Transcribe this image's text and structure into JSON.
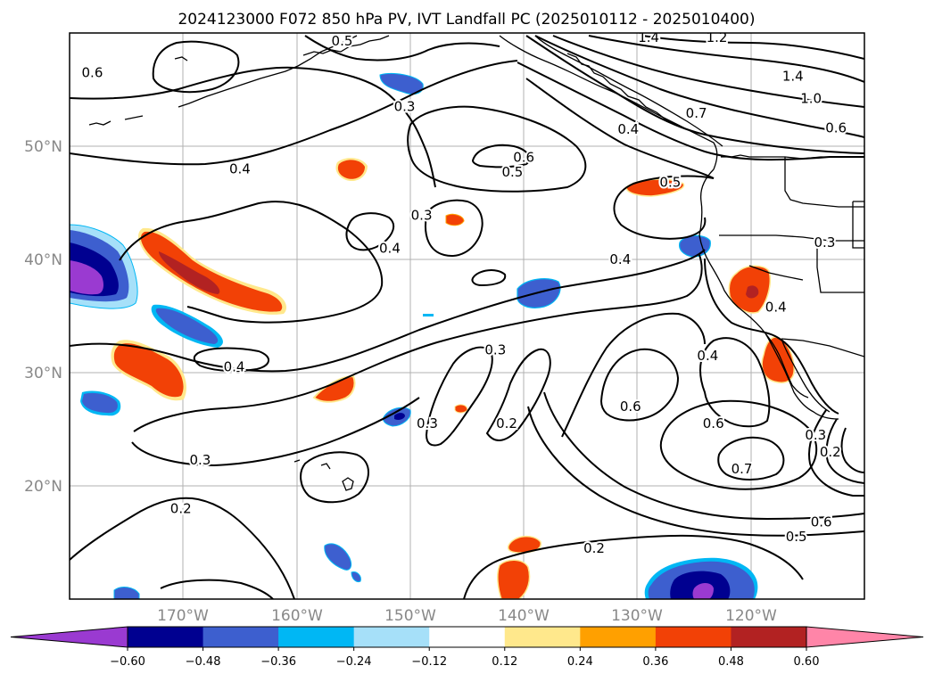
{
  "title": "2024123000 F072 850 hPa PV, IVT Landfall PC (2025010112 - 2025010400)",
  "chart_data": {
    "type": "contour-map",
    "title": "2024123000 F072 850 hPa PV, IVT Landfall PC (2025010112 - 2025010400)",
    "longitude_ticks": [
      "170°W",
      "160°W",
      "150°W",
      "140°W",
      "130°W",
      "120°W"
    ],
    "latitude_ticks": [
      "50°N",
      "40°N",
      "30°N",
      "20°N"
    ],
    "extent": {
      "lon": [
        -180,
        -110
      ],
      "lat": [
        10,
        60
      ]
    },
    "grid": true,
    "colorbar": {
      "levels": [
        -0.6,
        -0.48,
        -0.36,
        -0.24,
        -0.12,
        0.12,
        0.24,
        0.36,
        0.48,
        0.6
      ],
      "tick_labels": [
        "−0.60",
        "−0.48",
        "−0.36",
        "−0.24",
        "−0.12",
        "0.12",
        "0.24",
        "0.36",
        "0.48",
        "0.60"
      ],
      "colors": [
        "#9a3ad1",
        "#000090",
        "#3d5fcf",
        "#00b7f4",
        "#a6e0f9",
        "#ffffff",
        "#ffe88c",
        "#ffa000",
        "#f24106",
        "#b22222",
        "#ff85a8"
      ],
      "extend": "both"
    },
    "contour_labels": [
      {
        "text": "0.6",
        "lon": -178,
        "lat": 56.5
      },
      {
        "text": "0.5",
        "lon": -156,
        "lat": 59.3
      },
      {
        "text": "0.3",
        "lon": -150.5,
        "lat": 53.5
      },
      {
        "text": "0.4",
        "lon": -165,
        "lat": 48
      },
      {
        "text": "0.6",
        "lon": -140,
        "lat": 49
      },
      {
        "text": "0.5",
        "lon": -141,
        "lat": 47.7
      },
      {
        "text": "0.3",
        "lon": -149,
        "lat": 43.9
      },
      {
        "text": "0.4",
        "lon": -151.8,
        "lat": 41
      },
      {
        "text": "0.4",
        "lon": -131.5,
        "lat": 40
      },
      {
        "text": "0.3",
        "lon": -142.5,
        "lat": 32
      },
      {
        "text": "0.4",
        "lon": -165.5,
        "lat": 30.5
      },
      {
        "text": "0.3",
        "lon": -148.5,
        "lat": 25.5
      },
      {
        "text": "0.2",
        "lon": -141.5,
        "lat": 25.5
      },
      {
        "text": "0.3",
        "lon": -168.5,
        "lat": 22.3
      },
      {
        "text": "0.2",
        "lon": -170.2,
        "lat": 18
      },
      {
        "text": "0.2",
        "lon": -133.8,
        "lat": 14.5
      },
      {
        "text": "1.4",
        "lon": -129,
        "lat": 59.6
      },
      {
        "text": "1.2",
        "lon": -123,
        "lat": 59.6
      },
      {
        "text": "1.4",
        "lon": -116.3,
        "lat": 56.2
      },
      {
        "text": "1.0",
        "lon": -114.7,
        "lat": 54.2
      },
      {
        "text": "0.7",
        "lon": -124.8,
        "lat": 52.9
      },
      {
        "text": "0.6",
        "lon": -112.5,
        "lat": 51.6
      },
      {
        "text": "0.4",
        "lon": -130.8,
        "lat": 51.5
      },
      {
        "text": "0.5",
        "lon": -127.1,
        "lat": 46.8
      },
      {
        "text": "0.3",
        "lon": -113.5,
        "lat": 41.5
      },
      {
        "text": "0.4",
        "lon": -117.8,
        "lat": 35.8
      },
      {
        "text": "0.4",
        "lon": -123.8,
        "lat": 31.5
      },
      {
        "text": "0.6",
        "lon": -130.6,
        "lat": 27
      },
      {
        "text": "0.6",
        "lon": -123.3,
        "lat": 25.5
      },
      {
        "text": "0.7",
        "lon": -120.8,
        "lat": 21.5
      },
      {
        "text": "0.3",
        "lon": -114.3,
        "lat": 24.5
      },
      {
        "text": "0.2",
        "lon": -113,
        "lat": 23
      },
      {
        "text": "0.6",
        "lon": -113.8,
        "lat": 16.8
      },
      {
        "text": "0.5",
        "lon": -116,
        "lat": 15.5
      }
    ]
  }
}
